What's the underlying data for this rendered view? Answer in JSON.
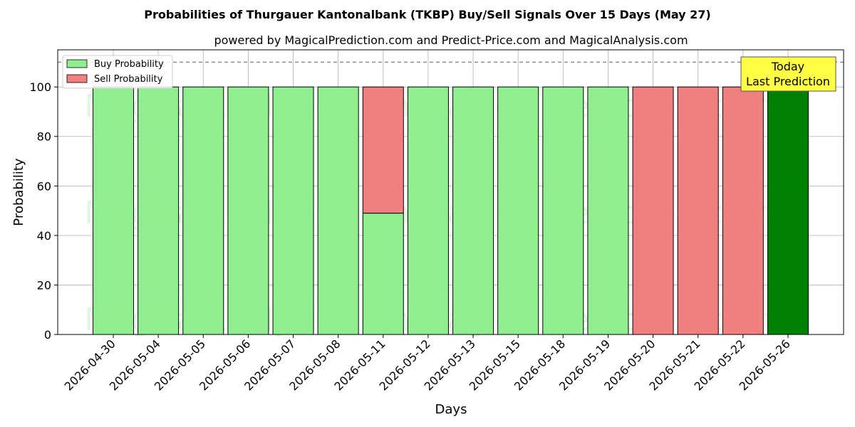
{
  "chart_data": {
    "type": "bar",
    "title": "Probabilities of Thurgauer Kantonalbank (TKBP) Buy/Sell Signals Over 15 Days (May 27)",
    "subtitle": "powered by MagicalPrediction.com and Predict-Price.com and MagicalAnalysis.com",
    "xlabel": "Days",
    "ylabel": "Probability",
    "ylim": [
      0,
      115
    ],
    "yticks": [
      0,
      20,
      40,
      60,
      80,
      100
    ],
    "reference_line": 110,
    "grid": true,
    "legend_placement": "top-left",
    "categories": [
      "2026-04-30",
      "2026-05-04",
      "2026-05-05",
      "2026-05-06",
      "2026-05-07",
      "2026-05-08",
      "2026-05-11",
      "2026-05-12",
      "2026-05-13",
      "2026-05-15",
      "2026-05-18",
      "2026-05-19",
      "2026-05-20",
      "2026-05-21",
      "2026-05-22",
      "2026-05-26"
    ],
    "series": [
      {
        "name": "Buy Probability",
        "color": "#90ee90",
        "values": [
          100,
          100,
          100,
          100,
          100,
          100,
          49,
          100,
          100,
          100,
          100,
          100,
          0,
          0,
          0,
          100
        ]
      },
      {
        "name": "Sell Probability",
        "color": "#f08080",
        "values": [
          0,
          0,
          0,
          0,
          0,
          0,
          51,
          0,
          0,
          0,
          0,
          0,
          100,
          100,
          100,
          0
        ]
      }
    ],
    "highlight": {
      "category": "2026-05-26",
      "color": "#008000"
    },
    "annotation": {
      "line1": "Today",
      "line2": "Last Prediction",
      "background": "#ffff44"
    },
    "watermarks": [
      "MagicalAnalysis.com",
      "MagicalPrediction.com"
    ]
  }
}
